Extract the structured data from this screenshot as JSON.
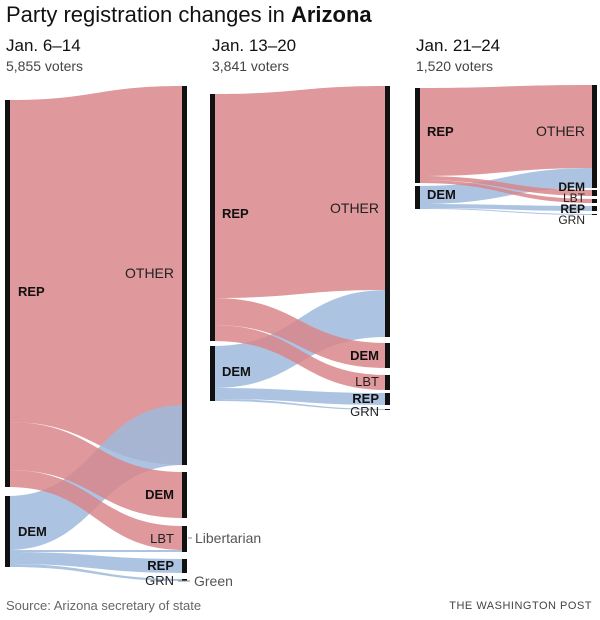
{
  "header": {
    "title_lead": "Party registration changes in ",
    "title_state": "Arizona"
  },
  "periods": [
    {
      "dates": "Jan. 6–14",
      "voters": "5,855 voters",
      "from": {
        "rep": "REP",
        "dem": "DEM"
      },
      "to": {
        "other": "OTHER",
        "dem": "DEM",
        "lbt": "LBT",
        "rep": "REP",
        "grn": "GRN"
      },
      "notes": {
        "libertarian": "Libertarian",
        "green": "Green"
      }
    },
    {
      "dates": "Jan. 13–20",
      "voters": "3,841 voters",
      "from": {
        "rep": "REP",
        "dem": "DEM"
      },
      "to": {
        "other": "OTHER",
        "dem": "DEM",
        "lbt": "LBT",
        "rep": "REP",
        "grn": "GRN"
      }
    },
    {
      "dates": "Jan. 21–24",
      "voters": "1,520 voters",
      "from": {
        "rep": "REP",
        "dem": "DEM"
      },
      "to": {
        "other": "OTHER",
        "dem": "DEM",
        "lbt": "LBT",
        "rep": "REP",
        "grn": "GRN"
      }
    }
  ],
  "colors": {
    "rep": "#d9868a",
    "dem": "#9dbadd",
    "bar": "#111111"
  },
  "footer": {
    "source": "Source: Arizona secretary of state",
    "credit": "THE WASHINGTON POST"
  }
}
